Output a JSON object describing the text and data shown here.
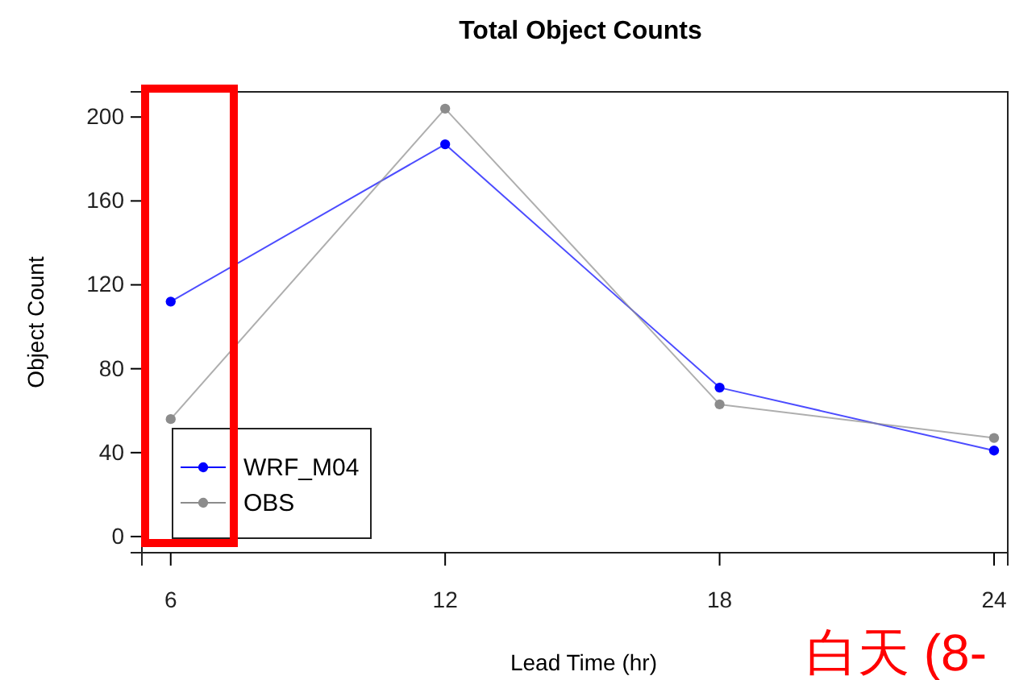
{
  "chart_data": {
    "type": "line",
    "title": "Total Object Counts",
    "xlabel": "Lead Time (hr)",
    "ylabel": "Object Count",
    "x": [
      6,
      12,
      18,
      24
    ],
    "series": [
      {
        "name": "WRF_M04",
        "color": "#0000ff",
        "values": [
          112,
          187,
          71,
          41
        ]
      },
      {
        "name": "OBS",
        "color": "#8c8c8c",
        "values": [
          56,
          204,
          63,
          47
        ]
      }
    ],
    "xlim": [
      5.37,
      24.3
    ],
    "xticks": [
      6,
      12,
      18,
      24
    ],
    "ylim": [
      -7.7,
      212
    ],
    "yticks": [
      0,
      40,
      80,
      120,
      160,
      200
    ],
    "marker": "circle",
    "legend": "bottom left",
    "grid": false,
    "annotations": [
      "白天 (8-"
    ]
  }
}
